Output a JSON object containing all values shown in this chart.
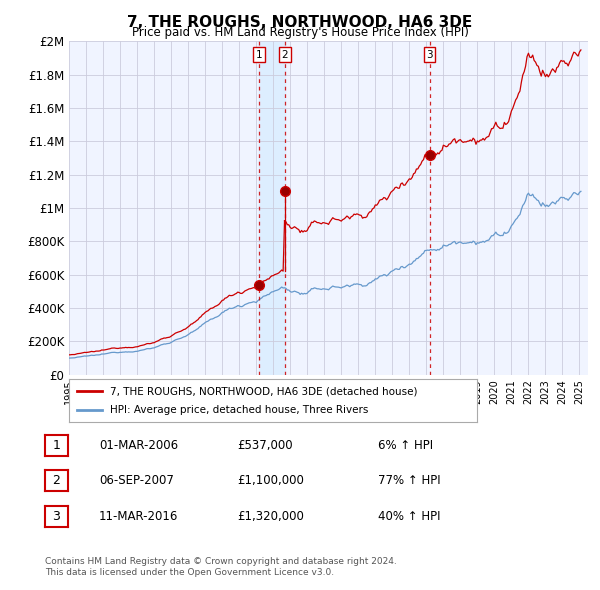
{
  "title": "7, THE ROUGHS, NORTHWOOD, HA6 3DE",
  "subtitle": "Price paid vs. HM Land Registry's House Price Index (HPI)",
  "legend_line1": "7, THE ROUGHS, NORTHWOOD, HA6 3DE (detached house)",
  "legend_line2": "HPI: Average price, detached house, Three Rivers",
  "footer1": "Contains HM Land Registry data © Crown copyright and database right 2024.",
  "footer2": "This data is licensed under the Open Government Licence v3.0.",
  "transactions": [
    {
      "num": "1",
      "date": "01-MAR-2006",
      "price": "£537,000",
      "hpi": "6% ↑ HPI",
      "year": 2006.17
    },
    {
      "num": "2",
      "date": "06-SEP-2007",
      "price": "£1,100,000",
      "hpi": "77% ↑ HPI",
      "year": 2007.67
    },
    {
      "num": "3",
      "date": "11-MAR-2016",
      "price": "£1,320,000",
      "hpi": "40% ↑ HPI",
      "year": 2016.19
    }
  ],
  "vline_color": "#cc0000",
  "vline_style": "--",
  "red_line_color": "#cc0000",
  "blue_line_color": "#6699cc",
  "shade_color": "#ddeeff",
  "ylim": [
    0,
    2000000
  ],
  "yticks": [
    0,
    200000,
    400000,
    600000,
    800000,
    1000000,
    1200000,
    1400000,
    1600000,
    1800000,
    2000000
  ],
  "ytick_labels": [
    "£0",
    "£200K",
    "£400K",
    "£600K",
    "£800K",
    "£1M",
    "£1.2M",
    "£1.4M",
    "£1.6M",
    "£1.8M",
    "£2M"
  ],
  "background_color": "#f8f8ff",
  "plot_bg_color": "#f0f4ff",
  "grid_color": "#ccccdd"
}
